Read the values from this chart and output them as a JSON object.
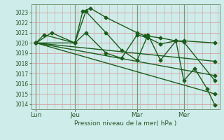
{
  "title": "Pression niveau de la mer( hPa )",
  "background_color": "#ceecea",
  "grid_color_h": "#d4a0a0",
  "grid_color_v": "#7a9a7a",
  "line_color": "#1a5c1a",
  "ylim": [
    1013.5,
    1023.8
  ],
  "yticks": [
    1014,
    1015,
    1016,
    1017,
    1018,
    1019,
    1020,
    1021,
    1022,
    1023
  ],
  "xtick_labels": [
    "Lun",
    "Jeu",
    "Mar",
    "Mer"
  ],
  "xtick_x": [
    0,
    2.5,
    6.5,
    9.5
  ],
  "vlines": [
    0,
    2.5,
    6.5,
    9.5
  ],
  "xlim": [
    -0.3,
    11.8
  ],
  "series": [
    {
      "x": [
        0,
        1.0,
        2.5,
        3.0,
        3.5,
        4.5,
        6.5,
        7.0,
        8.0,
        9.0,
        9.5,
        11.5
      ],
      "y": [
        1020.0,
        1021.0,
        1020.0,
        1023.1,
        1023.4,
        1022.5,
        1021.0,
        1020.7,
        1020.5,
        1020.2,
        1020.2,
        1020.0
      ]
    },
    {
      "x": [
        0,
        0.5,
        2.5,
        3.2,
        4.5,
        5.5,
        6.5,
        7.2,
        8.0,
        9.0,
        9.5,
        11.5
      ],
      "y": [
        1020.0,
        1020.8,
        1020.0,
        1021.0,
        1019.0,
        1018.5,
        1020.8,
        1020.5,
        1019.9,
        1020.2,
        1020.1,
        1016.3
      ]
    },
    {
      "x": [
        0,
        11.5
      ],
      "y": [
        1020.0,
        1018.2
      ]
    },
    {
      "x": [
        0,
        11.5
      ],
      "y": [
        1020.0,
        1016.8
      ]
    },
    {
      "x": [
        0,
        11.5
      ],
      "y": [
        1020.0,
        1015.0
      ]
    },
    {
      "x": [
        0,
        2.5,
        3.2,
        4.5,
        5.5,
        6.5,
        7.2,
        8.0,
        9.0,
        9.5,
        10.2,
        11.0,
        11.5
      ],
      "y": [
        1020.0,
        1020.0,
        1023.1,
        1021.0,
        1019.3,
        1018.3,
        1020.8,
        1018.3,
        1020.2,
        1016.3,
        1017.5,
        1015.5,
        1013.9
      ]
    }
  ]
}
